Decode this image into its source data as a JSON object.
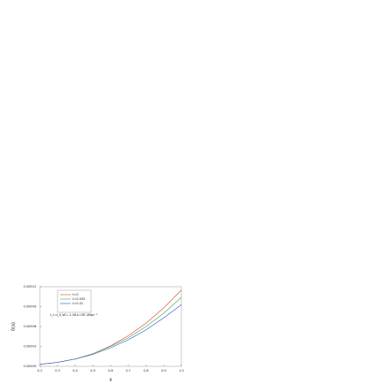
{
  "chart_data": {
    "type": "line",
    "x": [
      0.2,
      0.3,
      0.4,
      0.5,
      0.6,
      0.7,
      0.8,
      0.9,
      1.0
    ],
    "series": [
      {
        "name": "t=0",
        "color": "#e04040",
        "values": [
          3e-06,
          6e-06,
          1.1e-05,
          1.9e-05,
          3.1e-05,
          4.6e-05,
          6.5e-05,
          8.8e-05,
          0.000115
        ]
      },
      {
        "name": "t=0.005",
        "color": "#30b040",
        "values": [
          3e-06,
          6e-06,
          1.1e-05,
          1.9e-05,
          3e-05,
          4.3e-05,
          6e-05,
          8e-05,
          0.000104
        ]
      },
      {
        "name": "t=0.01",
        "color": "#3050d0",
        "values": [
          3e-06,
          6e-06,
          1.1e-05,
          1.8e-05,
          2.8e-05,
          4e-05,
          5.5e-05,
          7.3e-05,
          9.3e-05
        ]
      }
    ],
    "xlabel": "a",
    "ylabel": "δ(a)",
    "annotation": "t_i=t_0,W=-1.08,k=5E-4Mpc⁻¹",
    "xlim": [
      0.2,
      1.0
    ],
    "xticks": [
      0.2,
      0.3,
      0.4,
      0.5,
      0.6,
      0.7,
      0.8,
      0.9,
      {
        "value": 1,
        "label": "1.0"
      }
    ],
    "ylim": [
      0,
      0.00012
    ],
    "yticks": [
      {
        "value": 0,
        "label": "0.00000"
      },
      {
        "value": 3e-05,
        "label": "0.00003"
      },
      {
        "value": 6e-05,
        "label": "0.00006"
      },
      {
        "value": 9e-05,
        "label": "0.00009"
      },
      {
        "value": 0.00012,
        "label": "0.00012"
      }
    ],
    "legend": "upper left"
  }
}
